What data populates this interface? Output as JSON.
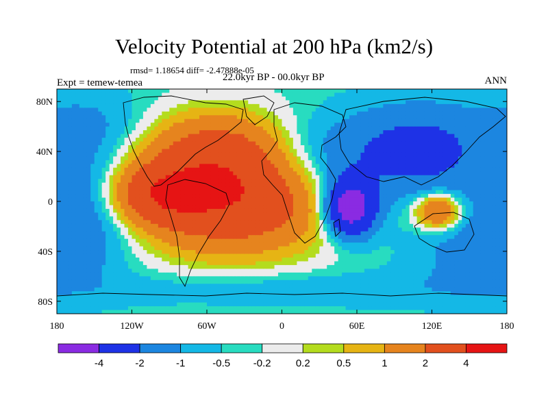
{
  "chart_data": {
    "type": "heatmap",
    "title": "Velocity Potential at 200 hPa (km2/s)",
    "subtitle_left": "Expt = temew-temea",
    "subtitle_center": "22.0kyr BP - 00.0kyr BP",
    "subtitle_right": "ANN",
    "stats": "rmsd= 1.18654 diff= -2.47888e-05",
    "x_ticks": [
      {
        "value": -180,
        "label": "180"
      },
      {
        "value": -120,
        "label": "120W"
      },
      {
        "value": -60,
        "label": "60W"
      },
      {
        "value": 0,
        "label": "0"
      },
      {
        "value": 60,
        "label": "60E"
      },
      {
        "value": 120,
        "label": "120E"
      },
      {
        "value": 180,
        "label": "180"
      }
    ],
    "y_ticks": [
      {
        "value": 80,
        "label": "80N"
      },
      {
        "value": 40,
        "label": "40N"
      },
      {
        "value": 0,
        "label": "0"
      },
      {
        "value": -40,
        "label": "40S"
      },
      {
        "value": -80,
        "label": "80S"
      }
    ],
    "xlim": [
      -180,
      180
    ],
    "ylim": [
      -90,
      90
    ],
    "levels": [
      -4,
      -2,
      -1,
      -0.5,
      -0.2,
      0.2,
      0.5,
      1,
      2,
      4
    ],
    "level_labels": [
      "-4",
      "-2",
      "-1",
      "-0.5",
      "-0.2",
      "0.2",
      "0.5",
      "1",
      "2",
      "4"
    ],
    "colors": [
      "#8a2be2",
      "#1e32e6",
      "#1c86e0",
      "#14b8e6",
      "#28dcc0",
      "#ececec",
      "#b4dc1e",
      "#e6b414",
      "#e6841e",
      "#e2501e",
      "#e61414"
    ],
    "field_centers": [
      {
        "lon": -40,
        "lat": 5,
        "amp": 4.2,
        "sx": 55,
        "sy": 32
      },
      {
        "lon": -100,
        "lat": 5,
        "amp": 2.4,
        "sx": 28,
        "sy": 16
      },
      {
        "lon": -55,
        "lat": 45,
        "amp": 1.6,
        "sx": 45,
        "sy": 22
      },
      {
        "lon": 55,
        "lat": -5,
        "amp": -5.5,
        "sx": 14,
        "sy": 16
      },
      {
        "lon": 30,
        "lat": 35,
        "amp": -1.6,
        "sx": 38,
        "sy": 24
      },
      {
        "lon": 110,
        "lat": 40,
        "amp": -2.2,
        "sx": 35,
        "sy": 25
      },
      {
        "lon": 125,
        "lat": -8,
        "amp": 3.0,
        "sx": 13,
        "sy": 10
      },
      {
        "lon": -160,
        "lat": 0,
        "amp": -1.5,
        "sx": 30,
        "sy": 35
      },
      {
        "lon": 160,
        "lat": -40,
        "amp": -1.0,
        "sx": 40,
        "sy": 25
      },
      {
        "lon": -150,
        "lat": 60,
        "amp": -0.8,
        "sx": 40,
        "sy": 20
      },
      {
        "lon": 0,
        "lat": -70,
        "amp": -0.6,
        "sx": 120,
        "sy": 10
      }
    ],
    "field_background": -0.35
  }
}
